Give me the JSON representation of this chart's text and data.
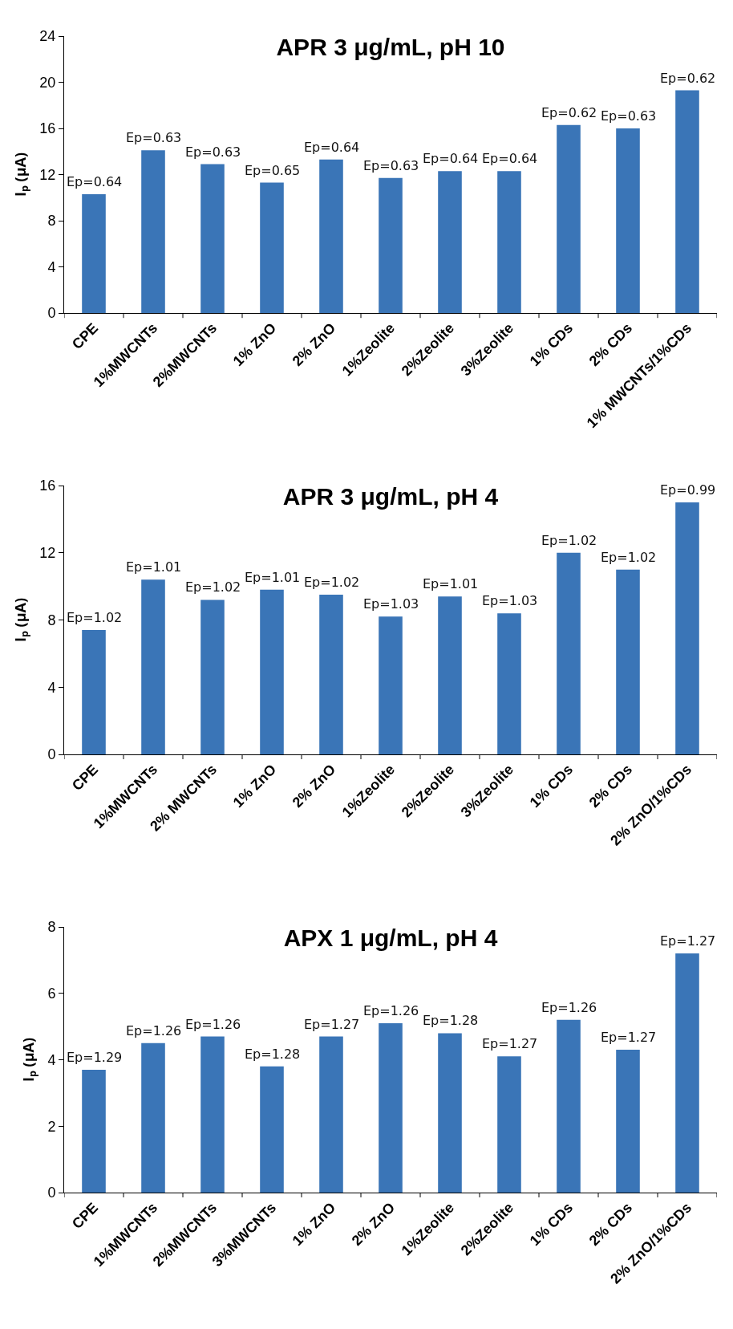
{
  "chart_data": [
    {
      "type": "bar",
      "title": "APR 3 μg/mL, pH 10",
      "ylabel": "I$_{p}$ (μA)",
      "categories": [
        "CPE",
        "1%MWCNTs",
        "2%MWCNTs",
        "1% ZnO",
        "2% ZnO",
        "1%Zeolite",
        "2%Zeolite",
        "3%Zeolite",
        "1% CDs",
        "2% CDs",
        "1% MWCNTs/1%CDs"
      ],
      "values": [
        10.3,
        14.1,
        12.9,
        11.3,
        13.3,
        11.7,
        12.3,
        12.3,
        16.3,
        16.0,
        19.3
      ],
      "annotations": [
        {
          "text": "Ep=0.64",
          "x": "CPE",
          "y": 10.3
        },
        {
          "text": "Ep=0.63",
          "x": "1%MWCNTs",
          "y": 14.1
        },
        {
          "text": "Ep=0.63",
          "x": "2%MWCNTs",
          "y": 12.9
        },
        {
          "text": "Ep=0.65",
          "x": "1% ZnO",
          "y": 11.3
        },
        {
          "text": "Ep=0.64",
          "x": "2% ZnO",
          "y": 13.3
        },
        {
          "text": "Ep=0.63",
          "x": "1%Zeolite",
          "y": 11.7
        },
        {
          "text": "Ep=0.64",
          "x": "2%Zeolite",
          "y": 12.3
        },
        {
          "text": "Ep=0.64",
          "x": "3%Zeolite",
          "y": 12.3
        },
        {
          "text": "Ep=0.62",
          "x": "1% CDs",
          "y": 16.3
        },
        {
          "text": "Ep=0.63",
          "x": "2% CDs",
          "y": 16.0
        },
        {
          "text": "Ep=0.62",
          "x": "1% MWCNTs/1%CDs",
          "y": 19.3
        }
      ],
      "color": "#3a75b7",
      "ylim": [
        0,
        24
      ],
      "yticks": [
        0,
        4,
        8,
        12,
        16,
        20,
        24
      ],
      "grid": false
    },
    {
      "type": "bar",
      "title": "APR 3 μg/mL, pH 4",
      "ylabel": "I$_{p}$ (μA)",
      "categories": [
        "CPE",
        "1%MWCNTs",
        "2% MWCNTs",
        "1% ZnO",
        "2% ZnO",
        "1%Zeolite",
        "2%Zeolite",
        "3%Zeolite",
        "1% CDs",
        "2% CDs",
        "2% ZnO/1%CDs"
      ],
      "values": [
        7.4,
        10.4,
        9.2,
        9.8,
        9.5,
        8.2,
        9.4,
        8.4,
        12.0,
        11.0,
        15.0
      ],
      "annotations": [
        {
          "text": "Ep=1.02",
          "x": "CPE",
          "y": 7.4
        },
        {
          "text": "Ep=1.01",
          "x": "1%MWCNTs",
          "y": 10.4
        },
        {
          "text": "Ep=1.02",
          "x": "2% MWCNTs",
          "y": 9.2
        },
        {
          "text": "Ep=1.01",
          "x": "1% ZnO",
          "y": 9.8
        },
        {
          "text": "Ep=1.02",
          "x": "2% ZnO",
          "y": 9.5
        },
        {
          "text": "Ep=1.03",
          "x": "1%Zeolite",
          "y": 8.2
        },
        {
          "text": "Ep=1.01",
          "x": "2%Zeolite",
          "y": 9.4
        },
        {
          "text": "Ep=1.03",
          "x": "3%Zeolite",
          "y": 8.4
        },
        {
          "text": "Ep=1.02",
          "x": "1% CDs",
          "y": 12.0
        },
        {
          "text": "Ep=1.02",
          "x": "2% CDs",
          "y": 11.0
        },
        {
          "text": "Ep=0.99",
          "x": "2% ZnO/1%CDs",
          "y": 15.0
        }
      ],
      "color": "#3a75b7",
      "ylim": [
        0,
        16
      ],
      "yticks": [
        0,
        4,
        8,
        12,
        16
      ],
      "grid": false
    },
    {
      "type": "bar",
      "title": "APX 1 μg/mL, pH 4",
      "ylabel": "I$_{p}$ (μA)",
      "categories": [
        "CPE",
        "1%MWCNTs",
        "2%MWCNTs",
        "3%MWCNTs",
        "1% ZnO",
        "2% ZnO",
        "1%Zeolite",
        "2%Zeolite",
        "1% CDs",
        "2% CDs",
        "2% ZnO/1%CDs"
      ],
      "values": [
        3.7,
        4.5,
        4.7,
        3.8,
        4.7,
        5.1,
        4.8,
        4.1,
        5.2,
        4.3,
        7.2
      ],
      "annotations": [
        {
          "text": "Ep=1.29",
          "x": "CPE",
          "y": 3.7
        },
        {
          "text": "Ep=1.26",
          "x": "1%MWCNTs",
          "y": 4.5
        },
        {
          "text": "Ep=1.26",
          "x": "2%MWCNTs",
          "y": 4.7
        },
        {
          "text": "Ep=1.28",
          "x": "3%MWCNTs",
          "y": 3.8
        },
        {
          "text": "Ep=1.27",
          "x": "1% ZnO",
          "y": 4.7
        },
        {
          "text": "Ep=1.26",
          "x": "2% ZnO",
          "y": 5.1
        },
        {
          "text": "Ep=1.28",
          "x": "1%Zeolite",
          "y": 4.8
        },
        {
          "text": "Ep=1.27",
          "x": "2%Zeolite",
          "y": 4.1
        },
        {
          "text": "Ep=1.26",
          "x": "1% CDs",
          "y": 5.2
        },
        {
          "text": "Ep=1.27",
          "x": "2% CDs",
          "y": 4.3
        },
        {
          "text": "Ep=1.27",
          "x": "2% ZnO/1%CDs",
          "y": 7.2
        }
      ],
      "color": "#3a75b7",
      "ylim": [
        0,
        8
      ],
      "yticks": [
        0,
        2,
        4,
        6,
        8
      ],
      "grid": false
    }
  ]
}
